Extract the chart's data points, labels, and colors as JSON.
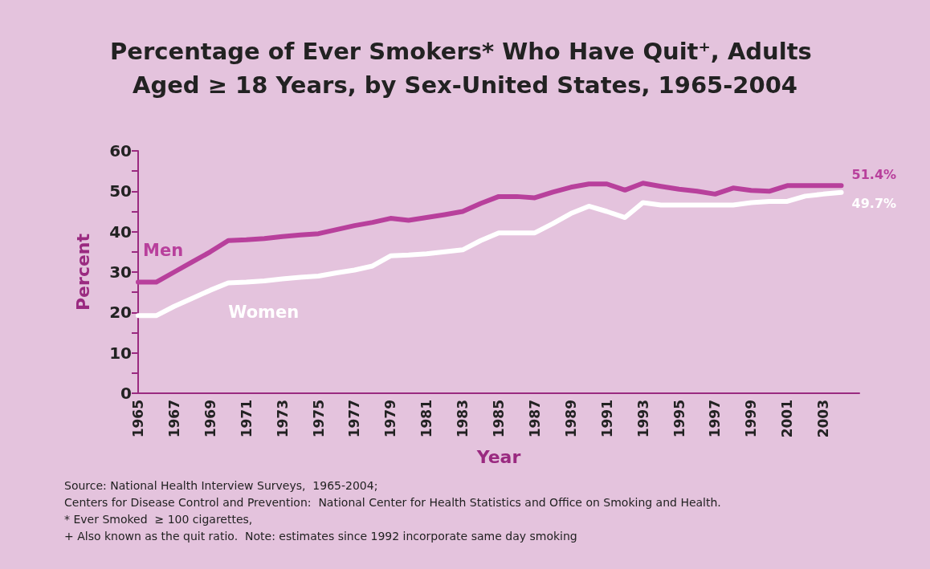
{
  "chart_data": {
    "type": "line",
    "title": "Percentage of Ever Smokers* Who Have Quit⁺, Adults Aged ≥ 18 Years, by Sex-United States, 1965-2004",
    "xlabel": "Year",
    "ylabel": "Percent",
    "x": [
      1965,
      1966,
      1967,
      1968,
      1969,
      1970,
      1971,
      1972,
      1973,
      1974,
      1975,
      1976,
      1977,
      1978,
      1979,
      1980,
      1981,
      1982,
      1983,
      1984,
      1985,
      1986,
      1987,
      1988,
      1989,
      1990,
      1991,
      1992,
      1993,
      1994,
      1995,
      1996,
      1997,
      1998,
      1999,
      2000,
      2001,
      2002,
      2003,
      2004
    ],
    "series": [
      {
        "name": "Men",
        "color": "#b8409c",
        "values": [
          27.5,
          27.5,
          30,
          32.5,
          35,
          37.8,
          38,
          38.3,
          38.8,
          39.2,
          39.5,
          40.5,
          41.5,
          42.3,
          43.3,
          42.8,
          43.5,
          44.2,
          45,
          47,
          48.7,
          48.7,
          48.4,
          49.8,
          51,
          51.8,
          51.8,
          50.3,
          52,
          51.2,
          50.5,
          50,
          49.3,
          50.8,
          50.2,
          50,
          51.4,
          51.4,
          51.4,
          51.4
        ],
        "value_labels": [
          null,
          null,
          null,
          null,
          null,
          null,
          null,
          null,
          null,
          null,
          null,
          null,
          null,
          null,
          null,
          null,
          null,
          null,
          null,
          null,
          null,
          null,
          null,
          null,
          null,
          null,
          null,
          null,
          null,
          null,
          null,
          null,
          null,
          null,
          null,
          null,
          null,
          null,
          null,
          "51.4%"
        ]
      },
      {
        "name": "Women",
        "color": "#ffffff",
        "values": [
          19.2,
          19.2,
          21.5,
          23.5,
          25.5,
          27.3,
          27.5,
          27.8,
          28.3,
          28.7,
          29,
          29.8,
          30.5,
          31.5,
          34,
          34.2,
          34.5,
          35,
          35.5,
          37.8,
          39.7,
          39.7,
          39.7,
          42,
          44.5,
          46.3,
          45,
          43.5,
          47.2,
          46.6,
          46.6,
          46.6,
          46.6,
          46.6,
          47.2,
          47.5,
          47.5,
          48.8,
          49.3,
          49.7
        ],
        "value_labels": [
          null,
          null,
          null,
          null,
          null,
          null,
          null,
          null,
          null,
          null,
          null,
          null,
          null,
          null,
          null,
          null,
          null,
          null,
          null,
          null,
          null,
          null,
          null,
          null,
          null,
          null,
          null,
          null,
          null,
          null,
          null,
          null,
          null,
          null,
          null,
          null,
          null,
          null,
          null,
          "49.7%"
        ]
      }
    ],
    "xlim": [
      1965,
      2005
    ],
    "xticks": [
      1965,
      1967,
      1969,
      1971,
      1973,
      1975,
      1977,
      1979,
      1981,
      1983,
      1985,
      1987,
      1989,
      1991,
      1993,
      1995,
      1997,
      1999,
      2001,
      2003
    ],
    "ylim": [
      0,
      60
    ],
    "yticks": [
      0,
      {
        "value": 5,
        "label": null
      },
      10,
      {
        "value": 15,
        "label": null
      },
      20,
      {
        "value": 25,
        "label": null
      },
      30,
      {
        "value": 35,
        "label": null
      },
      40,
      {
        "value": 45,
        "label": null
      },
      50,
      {
        "value": 55,
        "label": null
      },
      60
    ],
    "grid": false,
    "legend": false,
    "marker": "none",
    "line_style": "solid",
    "annotations": [
      "Source: National Health Interview Surveys,  1965-2004;",
      "Centers for Disease Control and Prevention:  National Center for Health Statistics and Office on Smoking and Health.",
      "* Ever Smoked  ≥ 100 cigarettes,",
      "+ Also known as the quit ratio.  Note: estimates since 1992 incorporate same day smoking"
    ]
  }
}
